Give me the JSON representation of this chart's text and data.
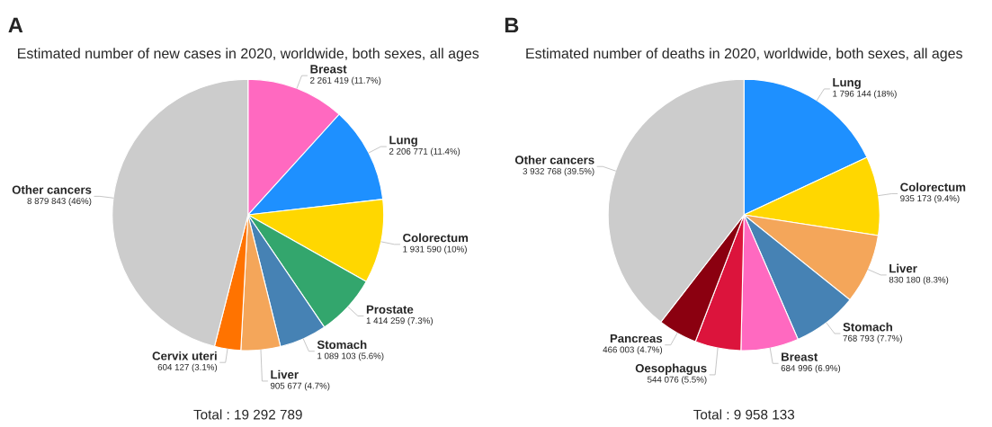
{
  "chart_data": [
    {
      "type": "pie",
      "title": "Estimated number of new cases in 2020, worldwide, both sexes, all ages",
      "categories": [
        "Breast",
        "Lung",
        "Colorectum",
        "Prostate",
        "Stomach",
        "Liver",
        "Cervix uteri",
        "Other cancers"
      ],
      "values": [
        2261419,
        2206771,
        1931590,
        1414259,
        1089103,
        905677,
        604127,
        8879843
      ],
      "colors": [
        "#ff69c0",
        "#1e90ff",
        "#ffd700",
        "#33a66d",
        "#4682b4",
        "#f4a65a",
        "#ff7300",
        "#cccccc"
      ],
      "value_labels": [
        "2 261 419 (11.7%)",
        "2 206 771 (11.4%)",
        "1 931 590 (10%)",
        "1 414 259 (7.3%)",
        "1 089 103 (5.6%)",
        "905 677 (4.7%)",
        "604 127 (3.1%)",
        "8 879 843 (46%)"
      ],
      "annotations": [
        "A",
        "Total : 19 292 789"
      ]
    },
    {
      "type": "pie",
      "title": "Estimated number of deaths in 2020, worldwide, both sexes, all ages",
      "categories": [
        "Lung",
        "Colorectum",
        "Liver",
        "Stomach",
        "Breast",
        "Oesophagus",
        "Pancreas",
        "Other cancers"
      ],
      "values": [
        1796144,
        935173,
        830180,
        768793,
        684996,
        544076,
        466003,
        3932768
      ],
      "colors": [
        "#1e90ff",
        "#ffd700",
        "#f4a65a",
        "#4682b4",
        "#ff69c0",
        "#dc143c",
        "#8b0010",
        "#cccccc"
      ],
      "value_labels": [
        "1 796 144 (18%)",
        "935 173 (9.4%)",
        "830 180 (8.3%)",
        "768 793 (7.7%)",
        "684 996 (6.9%)",
        "544 076 (5.5%)",
        "466 003 (4.7%)",
        "3 932 768 (39.5%)"
      ],
      "annotations": [
        "B",
        "Total : 9 958 133"
      ]
    }
  ]
}
